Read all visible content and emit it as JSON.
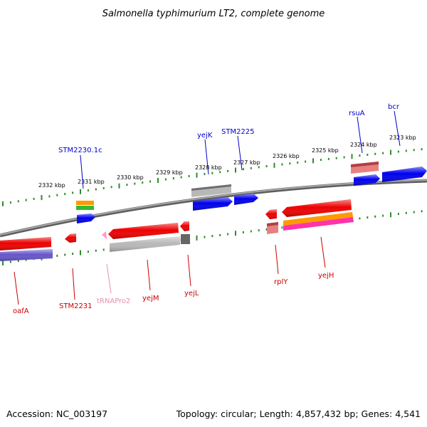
{
  "title": "Salmonella typhimurium LT2, complete genome",
  "footer": {
    "accession": "Accession: NC_003197",
    "topology": "Topology: circular; Length: 4,857,432 bp; Genes: 4,541"
  },
  "colors": {
    "backbone": "#7a7a7a",
    "tick": "#2e8b2e",
    "label_blue": "#0000cc",
    "label_red": "#cc0000",
    "label_pink": "#e58fb0",
    "feat_red": "#ee0000",
    "feat_blue": "#0000ee",
    "feat_gray": "#b8b8b8",
    "feat_darkgray": "#666666",
    "feat_salmon": "#e88080",
    "feat_orange": "#ff9900",
    "feat_green": "#33bb33",
    "feat_purple": "#6655cc",
    "feat_magenta": "#ff33aa",
    "feat_pink": "#ff99cc"
  },
  "tick_labels": [
    {
      "text": "2323 kbp"
    },
    {
      "text": "2324 kbp"
    },
    {
      "text": "2325 kbp"
    },
    {
      "text": "2326 kbp"
    },
    {
      "text": "2327 kbp"
    },
    {
      "text": "2328 kbp"
    },
    {
      "text": "2329 kbp"
    },
    {
      "text": "2330 kbp"
    },
    {
      "text": "2331 kbp"
    },
    {
      "text": "2332 kbp"
    }
  ],
  "genes_top": [
    {
      "name": "bcr"
    },
    {
      "name": "rsuA"
    },
    {
      "name": "STM2225"
    },
    {
      "name": "yejK"
    },
    {
      "name": "STM2230.1c"
    }
  ],
  "genes_bottom": [
    {
      "name": "oafA"
    },
    {
      "name": "STM2231"
    },
    {
      "name": "tRNAPro2"
    },
    {
      "name": "yejM"
    },
    {
      "name": "yejL"
    },
    {
      "name": "rplY"
    },
    {
      "name": "yejH"
    }
  ]
}
